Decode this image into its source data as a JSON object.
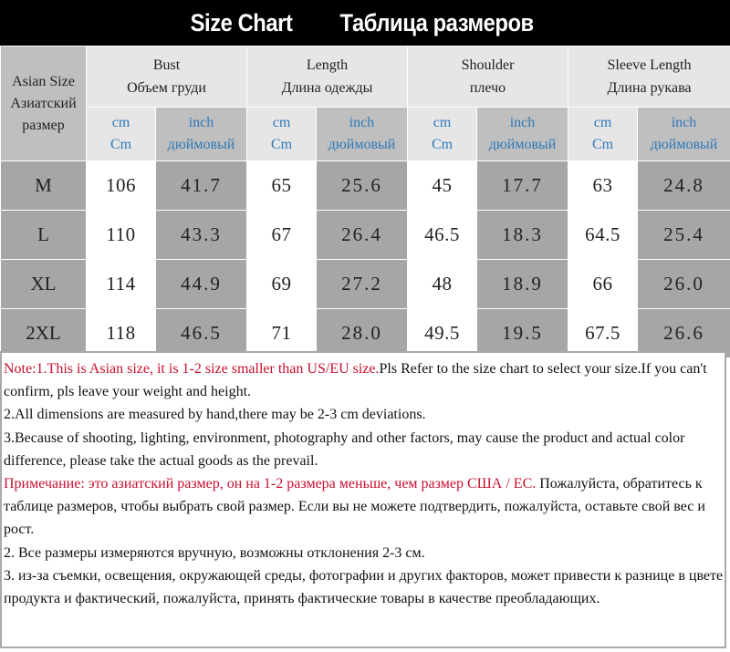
{
  "title": {
    "english": "Size Chart",
    "russian": "Таблица размеров"
  },
  "table": {
    "asian_size_header": [
      "Asian Size",
      "Азиатский",
      "размер"
    ],
    "measurements": [
      {
        "en": "Bust",
        "ru": "Объем груди"
      },
      {
        "en": "Length",
        "ru": "Длина одежды"
      },
      {
        "en": "Shoulder",
        "ru": "плечо"
      },
      {
        "en": "Sleeve Length",
        "ru": "Длина рукава"
      }
    ],
    "units": {
      "cm_top": "cm",
      "cm_bottom": "Cm",
      "inch_top": "inch",
      "inch_bottom": "дюймовый"
    },
    "rows": [
      {
        "size": "M",
        "values": [
          "106",
          "41.7",
          "65",
          "25.6",
          "45",
          "17.7",
          "63",
          "24.8"
        ]
      },
      {
        "size": "L",
        "values": [
          "110",
          "43.3",
          "67",
          "26.4",
          "46.5",
          "18.3",
          "64.5",
          "25.4"
        ]
      },
      {
        "size": "XL",
        "values": [
          "114",
          "44.9",
          "69",
          "27.2",
          "48",
          "18.9",
          "66",
          "26.0"
        ]
      },
      {
        "size": "2XL",
        "values": [
          "118",
          "46.5",
          "71",
          "28.0",
          "49.5",
          "19.5",
          "67.5",
          "26.6"
        ]
      }
    ]
  },
  "notes": {
    "en_note1_red": "Note:1.This is Asian size, it is 1-2 size smaller than US/EU size.",
    "en_note1_black": "Pls Refer to the size chart to select your size.If you can't confirm, pls leave your weight and height.",
    "en_note2": "2.All dimensions are measured by hand,there may be 2-3 cm deviations.",
    "en_note3": "3.Because of shooting, lighting, environment, photography and other factors, may cause the product and actual color difference, please take the actual goods as the prevail.",
    "ru_note1_red": "Примечание: это азиатский размер, он на 1-2 размера меньше, чем размер США / ЕС.",
    "ru_note1_black": " Пожалуйста, обратитесь к таблице размеров, чтобы выбрать свой размер. Если вы не можете подтвердить, пожалуйста, оставьте свой вес и рост.",
    "ru_note2": "2. Все размеры измеряются вручную, возможны отклонения 2-3 см.",
    "ru_note3": "3. из-за съемки, освещения, окружающей среды, фотографии и других факторов, может привести к разнице в цвете продукта и фактический, пожалуйста, принять фактические товары в качестве преобладающих."
  }
}
